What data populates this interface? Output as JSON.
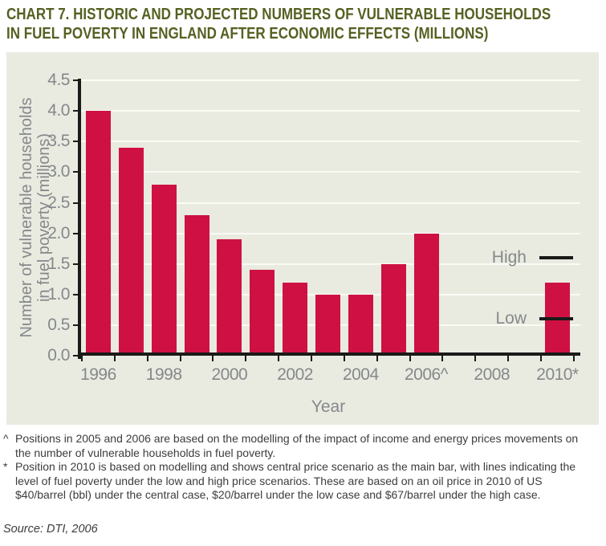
{
  "header": {
    "title_line1": "CHART 7. HISTORIC AND PROJECTED NUMBERS OF VULNERABLE HOUSEHOLDS",
    "title_line2": "IN FUEL POVERTY IN ENGLAND AFTER ECONOMIC EFFECTS (MILLIONS)"
  },
  "chart_data": {
    "type": "bar",
    "title": "CHART 7. HISTORIC AND PROJECTED NUMBERS OF VULNERABLE HOUSEHOLDS IN FUEL POVERTY IN ENGLAND AFTER ECONOMIC EFFECTS (MILLIONS)",
    "xlabel": "Year",
    "ylabel": "Number of vulnerable households in fuel poverty (millions)",
    "ylabel_lines": [
      "Number of vulnerable households",
      "in fuel poverty (millions)"
    ],
    "categories": [
      1996,
      1997,
      1998,
      1999,
      2000,
      2001,
      2002,
      2003,
      2004,
      2005,
      2006,
      2007,
      2008,
      2009,
      2010
    ],
    "values": [
      4.0,
      3.4,
      2.8,
      2.3,
      1.9,
      1.4,
      1.2,
      1.0,
      1.0,
      1.5,
      2.0,
      null,
      null,
      null,
      1.2
    ],
    "x_tick_labels": [
      "1996",
      "1998",
      "2000",
      "2002",
      "2004",
      "2006^",
      "2008",
      "2010*"
    ],
    "ylim": [
      0,
      4.5
    ],
    "ytick_step": 0.5,
    "grid": "horizontal light gridlines every 0.5",
    "legend_position": "inside-right",
    "scenario_lines": [
      {
        "label": "High",
        "value": 1.6
      },
      {
        "label": "Low",
        "value": 0.6
      }
    ],
    "colors": {
      "bar": "#CE1142",
      "panel_bg": "#E9EBE0",
      "grid": "#FAFBF5",
      "axis": "#1A1A1A",
      "tick_label": "#85888B",
      "title": "#556122",
      "text": "#3C3C3C"
    }
  },
  "footnotes": [
    {
      "marker": "^",
      "text": "Positions in 2005 and 2006 are based on the modelling of the impact of income and energy prices movements on the number of vulnerable households in fuel poverty."
    },
    {
      "marker": "*",
      "text": "Position in 2010 is based on modelling and shows central price scenario as the main bar, with lines indicating the level of fuel poverty under the low and high price scenarios. These are based on an oil price in 2010 of US $40/barrel (bbl) under the central case, $20/barrel under the low case and $67/barrel under the high case."
    }
  ],
  "source": "Source: DTI, 2006"
}
